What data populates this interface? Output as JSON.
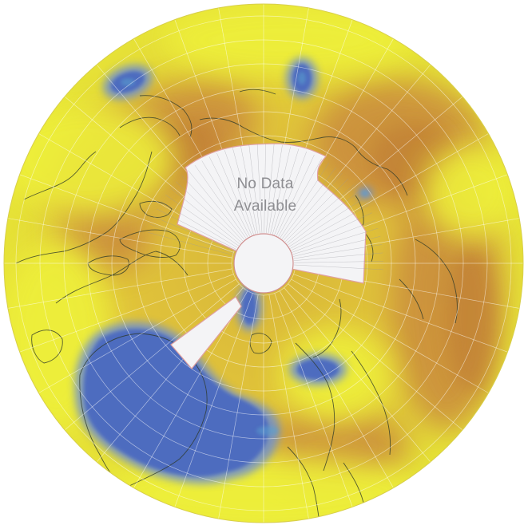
{
  "map": {
    "projection": "north-polar-stereographic",
    "no_data_label": {
      "line1": "No Data",
      "line2": "Available"
    },
    "colors": {
      "low": "#4f6fc0",
      "mid_low": "#e4e834",
      "mid_high": "#dcc23a",
      "high": "#c9893a",
      "no_data": "#f4f4f6",
      "no_data_border": "#e0a0a0",
      "coastline": "#2e3a2a",
      "graticule": "#ffffff"
    }
  }
}
